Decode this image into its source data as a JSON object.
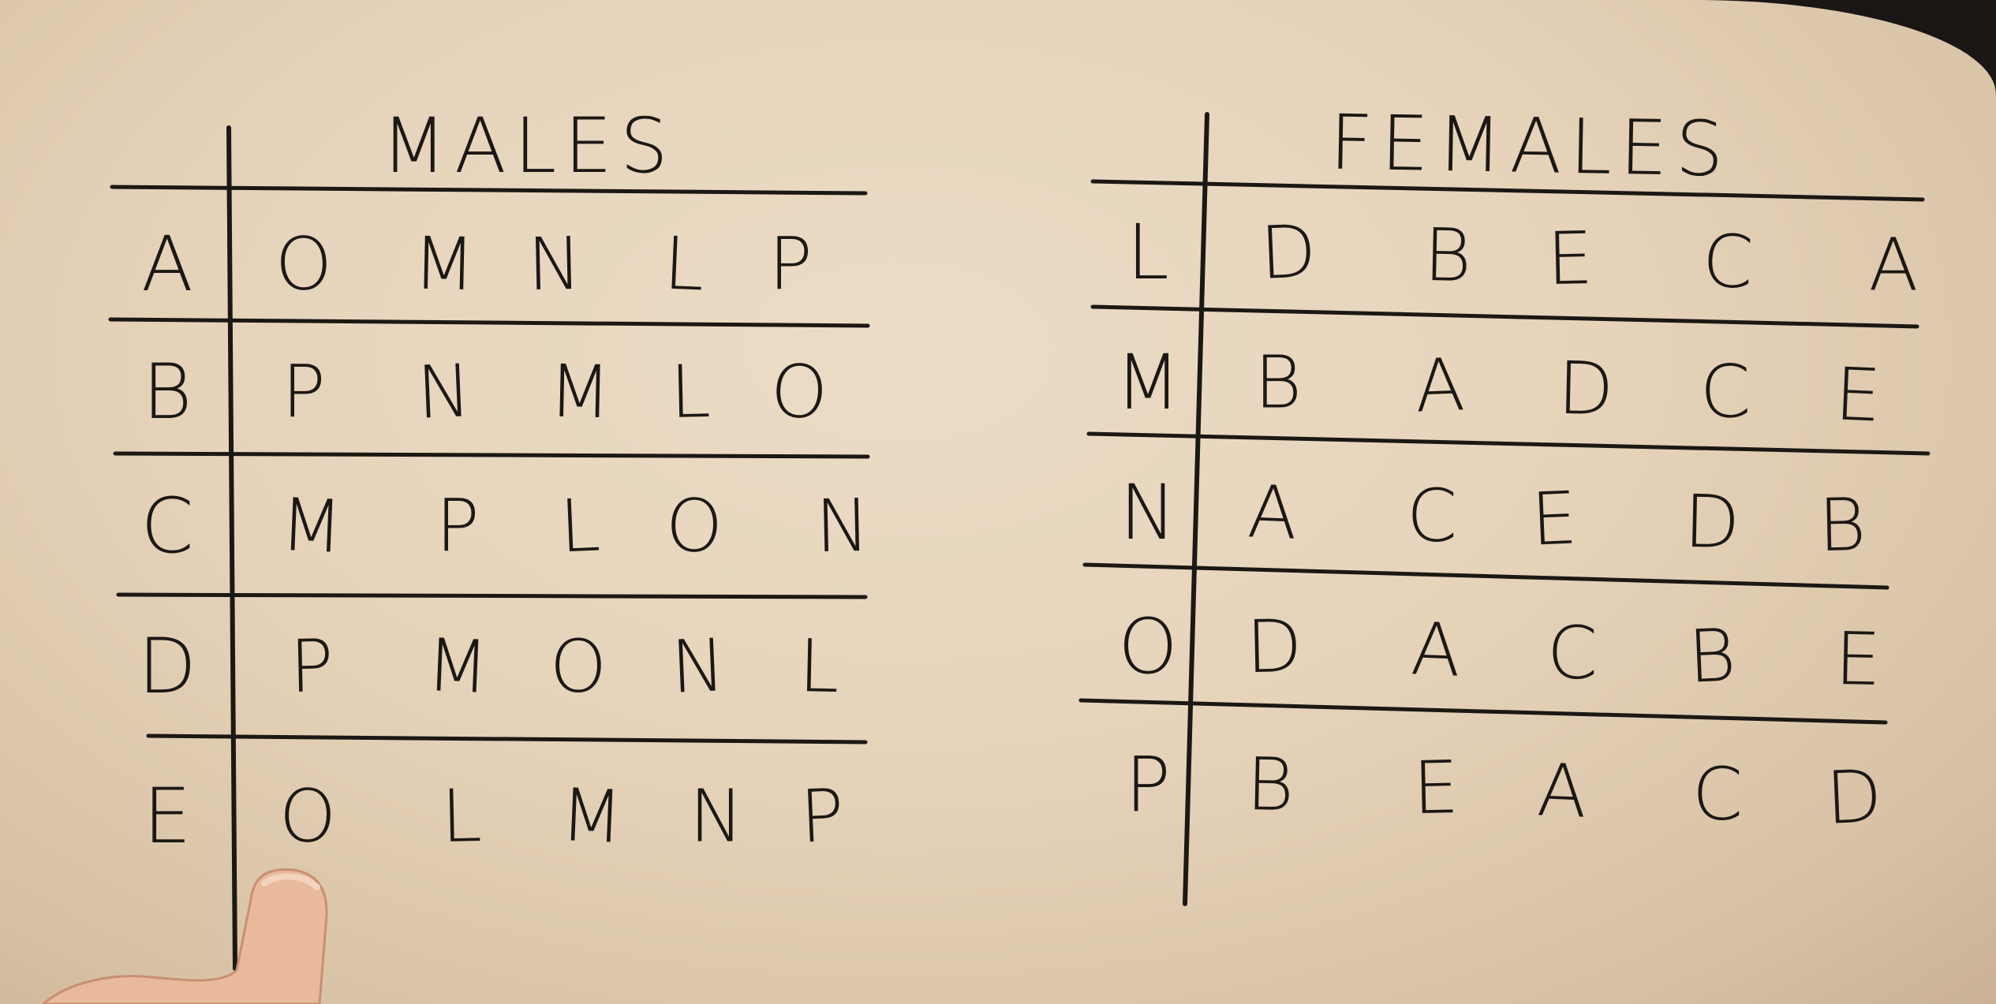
{
  "tables": [
    {
      "title": "MALES",
      "rows": [
        {
          "label": "A",
          "prefs": [
            "O",
            "M",
            "N",
            "L",
            "P"
          ]
        },
        {
          "label": "B",
          "prefs": [
            "P",
            "N",
            "M",
            "L",
            "O"
          ]
        },
        {
          "label": "C",
          "prefs": [
            "M",
            "P",
            "L",
            "O",
            "N"
          ]
        },
        {
          "label": "D",
          "prefs": [
            "P",
            "M",
            "O",
            "N",
            "L"
          ]
        },
        {
          "label": "E",
          "prefs": [
            "O",
            "L",
            "M",
            "N",
            "P"
          ]
        }
      ]
    },
    {
      "title": "FEMALES",
      "rows": [
        {
          "label": "L",
          "prefs": [
            "D",
            "B",
            "E",
            "C",
            "A"
          ]
        },
        {
          "label": "M",
          "prefs": [
            "B",
            "A",
            "D",
            "C",
            "E"
          ]
        },
        {
          "label": "N",
          "prefs": [
            "A",
            "C",
            "E",
            "D",
            "B"
          ]
        },
        {
          "label": "O",
          "prefs": [
            "D",
            "A",
            "C",
            "B",
            "E"
          ]
        },
        {
          "label": "P",
          "prefs": [
            "B",
            "E",
            "A",
            "C",
            "D"
          ]
        }
      ]
    }
  ],
  "colors": {
    "paper": "#e8d6be",
    "ink": "#1b1814",
    "background": "#1a1614",
    "skin": "#e9b99c"
  }
}
